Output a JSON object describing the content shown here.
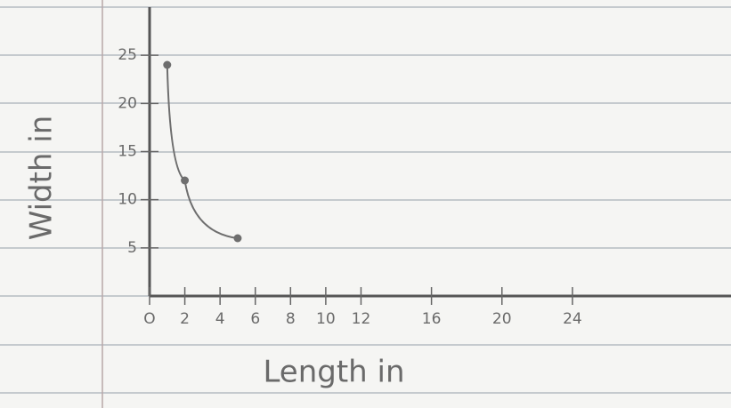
{
  "chart_data": {
    "type": "line",
    "x_label": "Length in",
    "y_label": "Width in",
    "x": [
      1,
      2,
      5
    ],
    "series": [
      {
        "color": "#6e6e6e",
        "values": [
          24,
          12,
          6
        ]
      }
    ],
    "xlim": [
      0,
      33
    ],
    "ylim": [
      0,
      30
    ],
    "xticks": [
      {
        "value": 0,
        "label": "O"
      },
      2,
      4,
      6,
      8,
      10,
      12,
      16,
      20,
      24
    ],
    "yticks": [
      5,
      10,
      15,
      20,
      25
    ]
  }
}
